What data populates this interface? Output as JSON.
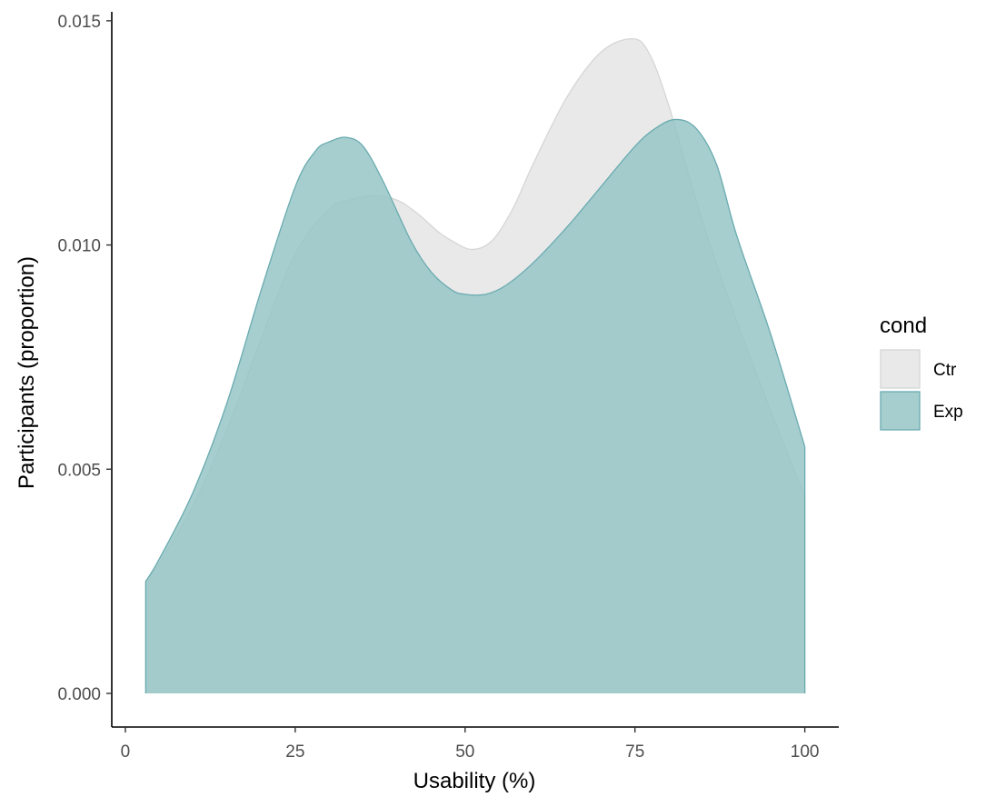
{
  "chart_data": {
    "type": "area",
    "xlabel": "Usability (%)",
    "ylabel": "Participants (proportion)",
    "xlim": [
      -2,
      105
    ],
    "ylim": [
      -0.00075,
      0.0152
    ],
    "x_ticks": [
      0,
      25,
      50,
      75,
      100
    ],
    "x_tick_labels": [
      "0",
      "25",
      "50",
      "75",
      "100"
    ],
    "y_ticks": [
      0,
      0.005,
      0.01,
      0.015
    ],
    "y_tick_labels": [
      "0.000",
      "0.005",
      "0.010",
      "0.015"
    ],
    "grid": false,
    "legend": {
      "title": "cond",
      "placement": "right",
      "entries": [
        "Ctr",
        "Exp"
      ]
    },
    "series": [
      {
        "name": "Ctr",
        "fill": "#e5e5e5",
        "stroke": "#d6d6d6",
        "x": [
          3,
          5,
          10,
          15,
          20,
          25,
          30,
          33,
          36.5,
          40,
          43,
          46,
          48,
          51,
          54,
          57,
          60,
          65,
          70,
          74.5,
          77,
          80,
          85,
          90,
          95,
          100
        ],
        "y": [
          0.0025,
          0.0029,
          0.0042,
          0.0059,
          0.0079,
          0.0098,
          0.0108,
          0.011,
          0.0111,
          0.011,
          0.0107,
          0.0103,
          0.0101,
          0.0099,
          0.0101,
          0.0108,
          0.0118,
          0.0133,
          0.0143,
          0.0146,
          0.0143,
          0.0131,
          0.0105,
          0.0083,
          0.0063,
          0.0044
        ]
      },
      {
        "name": "Exp",
        "fill": "#96c6c7",
        "stroke": "#6aabb0",
        "x": [
          3,
          5,
          10,
          15,
          20,
          25,
          28,
          30,
          32.5,
          35,
          38,
          42,
          45,
          48,
          50,
          53,
          56,
          60,
          65,
          70,
          75,
          78,
          81,
          84,
          87,
          90,
          95,
          100
        ],
        "y": [
          0.0025,
          0.003,
          0.0045,
          0.0065,
          0.009,
          0.0113,
          0.0121,
          0.0123,
          0.0124,
          0.0122,
          0.0114,
          0.0101,
          0.0094,
          0.009,
          0.0089,
          0.0089,
          0.0091,
          0.0096,
          0.0104,
          0.0113,
          0.0122,
          0.0126,
          0.0128,
          0.0126,
          0.0118,
          0.0102,
          0.008,
          0.0055
        ]
      }
    ]
  }
}
